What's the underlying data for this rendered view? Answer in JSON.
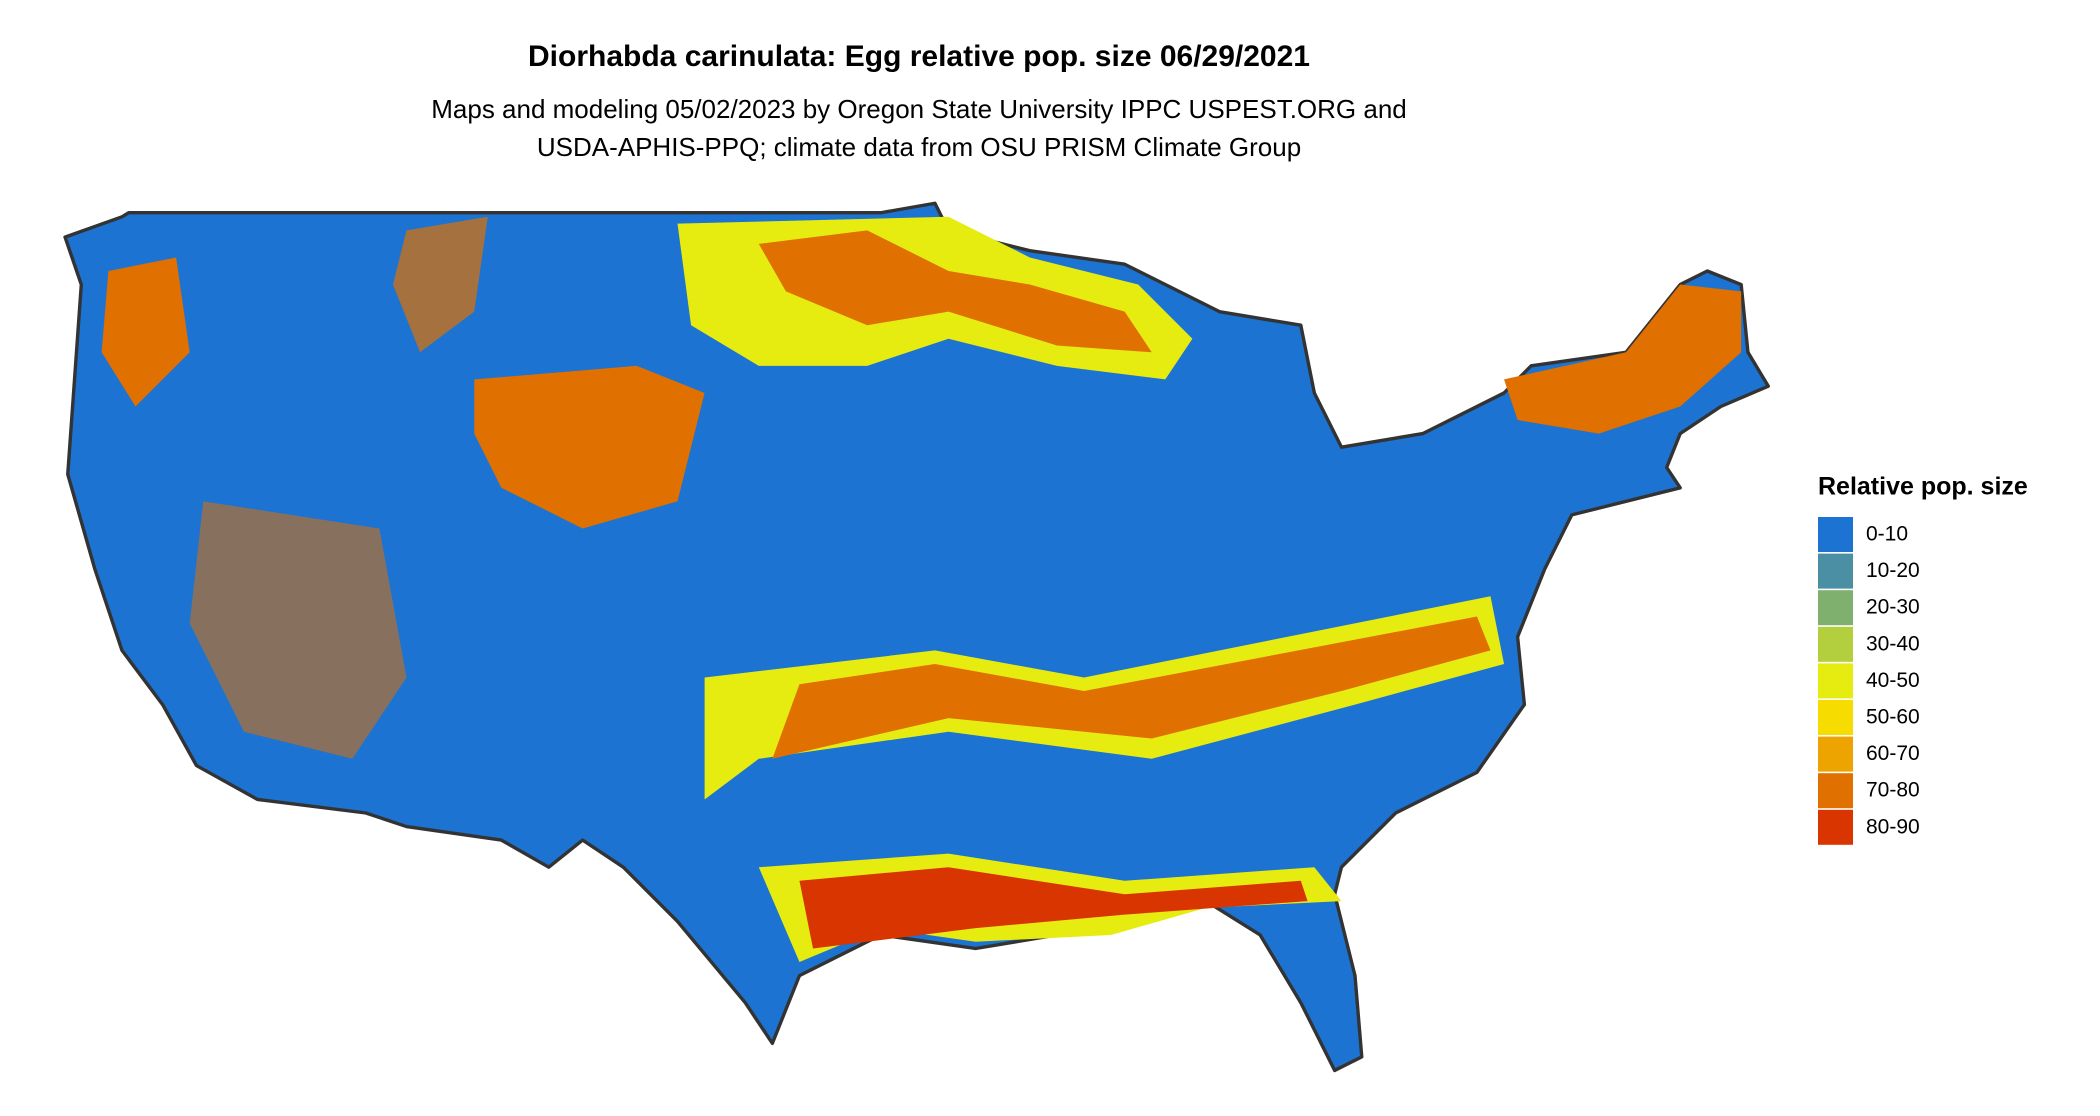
{
  "title": "Diorhabda carinulata: Egg relative pop. size 06/29/2021",
  "subtitle": [
    "Maps and modeling 05/02/2023 by Oregon State University IPPC USPEST.ORG and",
    "USDA-APHIS-PPQ; climate data from OSU PRISM Climate Group"
  ],
  "legend": {
    "title": "Relative pop. size",
    "items": [
      {
        "label": "0-10",
        "color": "#1c73d1"
      },
      {
        "label": "10-20",
        "color": "#4a8fa3"
      },
      {
        "label": "20-30",
        "color": "#7fb06e"
      },
      {
        "label": "30-40",
        "color": "#b4cf3d"
      },
      {
        "label": "40-50",
        "color": "#e6ec10"
      },
      {
        "label": "50-60",
        "color": "#f7dc00"
      },
      {
        "label": "60-70",
        "color": "#eda300"
      },
      {
        "label": "70-80",
        "color": "#e07000"
      },
      {
        "label": "80-90",
        "color": "#d83500"
      }
    ]
  }
}
